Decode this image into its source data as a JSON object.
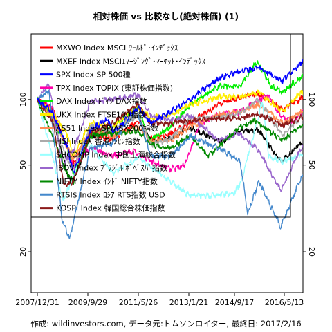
{
  "chart_data": {
    "type": "line",
    "title": "相対株価 vs 比較なし(絶対株価) (1)",
    "caption": "作成: wildinvestors.com, データ元:トムソンロイター, 最終日: 2017/2/16",
    "y_scale": "log",
    "ylim": [
      13,
      200
    ],
    "y_ticks": [
      20,
      50,
      100
    ],
    "x_range": [
      "2007-12-31",
      "2017-02-16"
    ],
    "x_tick_labels": [
      "2007/12/31",
      "2009/9/29",
      "2011/5/26",
      "2013/1/21",
      "2014/9/17",
      "2016/5/13"
    ],
    "grid": false,
    "legend_position": "top-left",
    "series": [
      {
        "name": "MXWO Index MSCI ﾜｰﾙﾄﾞ･ｲﾝﾃﾞｯｸｽ",
        "color": "#ff0000",
        "x": [
          "2007-12-31",
          "2008-06-30",
          "2008-12-31",
          "2009-03-09",
          "2009-09-30",
          "2010-06-30",
          "2011-04-30",
          "2011-10-01",
          "2012-06-01",
          "2013-01-21",
          "2013-12-31",
          "2014-09-17",
          "2015-05-01",
          "2016-02-11",
          "2016-09-01",
          "2017-02-16"
        ],
        "y": [
          100,
          90,
          60,
          50,
          70,
          65,
          80,
          66,
          70,
          78,
          95,
          103,
          106,
          90,
          100,
          110
        ]
      },
      {
        "name": "MXEF Index MSCIｴﾏｰｼﾞﾝｸﾞ･ﾏｰｹｯﾄ･ｲﾝﾃﾞｯｸｽ",
        "color": "#000000",
        "x": [
          "2007-12-31",
          "2008-06-30",
          "2008-12-31",
          "2009-03-09",
          "2009-09-30",
          "2010-06-30",
          "2011-04-30",
          "2011-10-01",
          "2012-06-01",
          "2013-01-21",
          "2014-01-31",
          "2014-09-17",
          "2015-04-30",
          "2016-01-21",
          "2016-09-01",
          "2017-02-16"
        ],
        "y": [
          100,
          85,
          45,
          42,
          68,
          72,
          85,
          64,
          66,
          74,
          64,
          72,
          72,
          52,
          62,
          68
        ]
      },
      {
        "name": "SPX Index SP 500種",
        "color": "#0000ff",
        "x": [
          "2007-12-31",
          "2008-06-30",
          "2008-12-31",
          "2009-03-09",
          "2009-09-30",
          "2010-04-30",
          "2010-07-01",
          "2011-04-30",
          "2011-10-01",
          "2012-06-01",
          "2013-01-21",
          "2013-12-31",
          "2014-09-17",
          "2015-05-01",
          "2016-02-11",
          "2016-09-01",
          "2017-02-16"
        ],
        "y": [
          100,
          87,
          60,
          46,
          72,
          82,
          70,
          92,
          78,
          88,
          100,
          125,
          135,
          140,
          122,
          146,
          158
        ]
      },
      {
        "name": "TPX Index TOPIX (東証株価指数)",
        "color": "#ff00aa",
        "x": [
          "2007-12-31",
          "2008-06-30",
          "2008-12-31",
          "2009-03-09",
          "2009-09-30",
          "2010-06-30",
          "2011-03-15",
          "2011-10-01",
          "2012-06-01",
          "2012-11-15",
          "2013-05-22",
          "2013-12-31",
          "2014-09-17",
          "2015-08-10",
          "2016-02-11",
          "2016-06-24",
          "2017-02-16"
        ],
        "y": [
          100,
          90,
          60,
          50,
          60,
          55,
          58,
          52,
          48,
          50,
          78,
          85,
          88,
          105,
          82,
          80,
          98
        ]
      },
      {
        "name": "DAX Index ﾄﾞｲﾂ DAX指数",
        "color": "#00ee00",
        "x": [
          "2007-12-31",
          "2008-06-30",
          "2008-12-31",
          "2009-03-09",
          "2009-09-30",
          "2010-06-30",
          "2011-05-01",
          "2011-09-12",
          "2012-06-01",
          "2013-01-21",
          "2013-12-31",
          "2014-09-17",
          "2015-04-10",
          "2015-09-24",
          "2016-02-11",
          "2016-09-01",
          "2017-02-16"
        ],
        "y": [
          100,
          82,
          60,
          45,
          70,
          75,
          92,
          65,
          75,
          95,
          115,
          115,
          150,
          115,
          108,
          125,
          140
        ]
      },
      {
        "name": "UKX Index FTSE100指数",
        "color": "#ffee00",
        "x": [
          "2007-12-31",
          "2008-06-30",
          "2008-12-31",
          "2009-03-09",
          "2009-09-30",
          "2010-06-30",
          "2011-04-30",
          "2011-10-01",
          "2012-06-01",
          "2013-01-21",
          "2013-12-31",
          "2014-09-17",
          "2015-04-27",
          "2016-02-11",
          "2016-09-01",
          "2017-02-16"
        ],
        "y": [
          100,
          87,
          68,
          55,
          78,
          75,
          92,
          82,
          85,
          95,
          103,
          103,
          108,
          88,
          106,
          112
        ]
      },
      {
        "name": "AS51 Index SP/ASX200指数",
        "color": "#ff8c55",
        "x": [
          "2007-12-31",
          "2008-06-30",
          "2008-12-31",
          "2009-03-09",
          "2009-09-30",
          "2010-06-30",
          "2011-04-30",
          "2011-10-01",
          "2012-06-01",
          "2013-01-21",
          "2013-12-31",
          "2014-09-17",
          "2015-04-27",
          "2016-02-11",
          "2016-09-01",
          "2017-02-16"
        ],
        "y": [
          100,
          82,
          60,
          53,
          72,
          68,
          75,
          65,
          65,
          75,
          85,
          88,
          95,
          78,
          87,
          92
        ]
      },
      {
        "name": "HSI Index 香港ﾊﾝｾﾝ指数",
        "color": "#aaaaaa",
        "x": [
          "2007-12-31",
          "2008-06-30",
          "2008-12-31",
          "2009-03-09",
          "2009-09-30",
          "2010-06-30",
          "2011-04-30",
          "2011-10-04",
          "2012-06-01",
          "2013-01-21",
          "2013-12-31",
          "2014-09-17",
          "2015-04-27",
          "2016-02-11",
          "2016-09-01",
          "2017-02-16"
        ],
        "y": [
          100,
          80,
          52,
          48,
          75,
          72,
          85,
          62,
          66,
          82,
          82,
          87,
          100,
          68,
          82,
          86
        ]
      },
      {
        "name": "SHCOMP Index 中国上海総合指数",
        "color": "#99ffff",
        "x": [
          "2007-12-31",
          "2008-06-30",
          "2008-11-04",
          "2009-03-09",
          "2009-08-04",
          "2010-06-30",
          "2011-04-30",
          "2012-06-01",
          "2012-12-03",
          "2013-06-25",
          "2014-06-30",
          "2014-09-17",
          "2015-06-12",
          "2015-08-26",
          "2016-02-11",
          "2016-09-01",
          "2017-02-16"
        ],
        "y": [
          100,
          55,
          34,
          44,
          65,
          46,
          54,
          42,
          37,
          36,
          37,
          41,
          98,
          55,
          52,
          55,
          59
        ]
      },
      {
        "name": "IBOV Index ﾌﾞﾗｼﾞﾙ ﾎﾞﾍﾞｽﾊﾟ指数",
        "color": "#9966cc",
        "x": [
          "2007-12-31",
          "2008-05-20",
          "2008-10-27",
          "2009-03-09",
          "2009-09-30",
          "2010-06-30",
          "2011-04-30",
          "2011-10-01",
          "2012-06-01",
          "2013-01-21",
          "2013-12-31",
          "2014-09-02",
          "2015-04-30",
          "2016-01-21",
          "2016-09-01",
          "2017-02-16"
        ],
        "y": [
          100,
          118,
          50,
          58,
          98,
          100,
          105,
          85,
          80,
          84,
          65,
          70,
          58,
          38,
          58,
          70
        ]
      },
      {
        "name": "NIFTY Index ｲﾝﾄﾞ NIFTY指数",
        "color": "#008800",
        "x": [
          "2007-12-31",
          "2008-06-30",
          "2008-12-31",
          "2009-03-09",
          "2009-09-30",
          "2010-06-30",
          "2011-04-30",
          "2011-10-01",
          "2012-06-01",
          "2013-01-21",
          "2013-08-28",
          "2014-09-17",
          "2015-03-03",
          "2016-02-11",
          "2016-09-01",
          "2017-02-16"
        ],
        "y": [
          100,
          68,
          45,
          42,
          68,
          70,
          72,
          62,
          60,
          68,
          55,
          75,
          80,
          65,
          75,
          78
        ]
      },
      {
        "name": "RTSI$ Index ﾛｼｱ RTS指数 USD",
        "color": "#4488cc",
        "x": [
          "2007-12-31",
          "2008-05-19",
          "2008-10-24",
          "2009-01-23",
          "2009-09-30",
          "2010-06-30",
          "2011-04-11",
          "2011-10-04",
          "2012-06-01",
          "2013-01-21",
          "2013-12-31",
          "2014-09-17",
          "2014-12-16",
          "2015-05-01",
          "2016-01-21",
          "2016-09-01",
          "2017-02-16"
        ],
        "y": [
          100,
          110,
          28,
          23,
          60,
          63,
          90,
          55,
          55,
          68,
          60,
          52,
          30,
          42,
          26,
          42,
          52
        ]
      },
      {
        "name": "KOSPI Index 韓国総合株価指数",
        "color": "#8b1a1a",
        "x": [
          "2007-12-31",
          "2008-06-30",
          "2008-11-20",
          "2009-03-09",
          "2009-09-30",
          "2010-06-30",
          "2011-04-30",
          "2011-10-01",
          "2012-06-01",
          "2013-01-21",
          "2013-12-31",
          "2014-09-17",
          "2015-04-27",
          "2016-02-11",
          "2016-09-01",
          "2017-02-16"
        ],
        "y": [
          100,
          80,
          40,
          42,
          70,
          78,
          95,
          78,
          78,
          80,
          82,
          82,
          86,
          76,
          82,
          85
        ]
      }
    ]
  }
}
